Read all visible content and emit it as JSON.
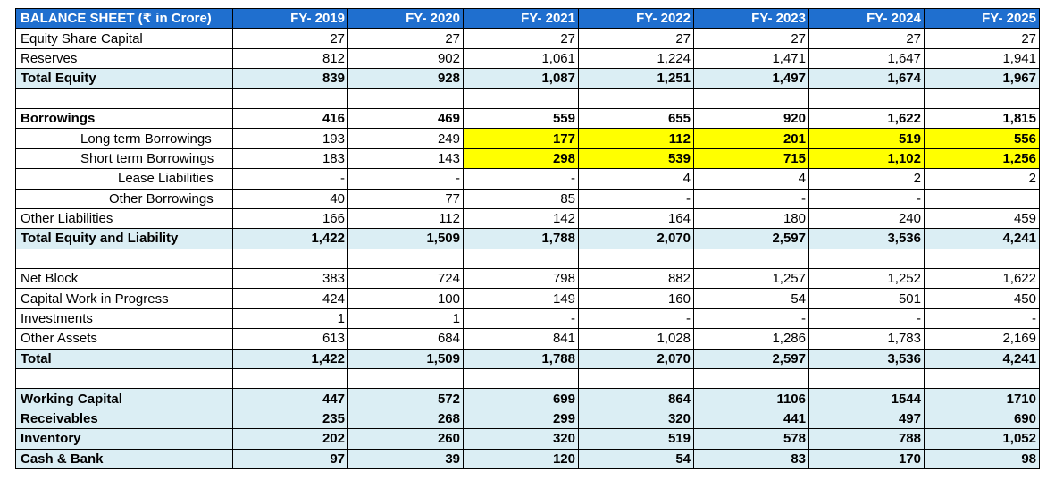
{
  "table": {
    "header": [
      "BALANCE SHEET (₹ in Crore)",
      "FY- 2019",
      "FY- 2020",
      "FY- 2021",
      "FY- 2022",
      "FY- 2023",
      "FY- 2024",
      "FY- 2025"
    ],
    "rows": [
      {
        "label": "Equity Share Capital",
        "values": [
          "27",
          "27",
          "27",
          "27",
          "27",
          "27",
          "27"
        ]
      },
      {
        "label": "Reserves",
        "values": [
          "812",
          "902",
          "1,061",
          "1,224",
          "1,471",
          "1,647",
          "1,941"
        ]
      },
      {
        "label": "Total Equity",
        "values": [
          "839",
          "928",
          "1,087",
          "1,251",
          "1,497",
          "1,674",
          "1,967"
        ]
      },
      {
        "label": "",
        "values": [
          "",
          "",
          "",
          "",
          "",
          "",
          ""
        ]
      },
      {
        "label": "Borrowings",
        "values": [
          "416",
          "469",
          "559",
          "655",
          "920",
          "1,622",
          "1,815"
        ]
      },
      {
        "label": "Long term Borrowings",
        "values": [
          "193",
          "249",
          "177",
          "112",
          "201",
          "519",
          "556"
        ]
      },
      {
        "label": "Short term Borrowings",
        "values": [
          "183",
          "143",
          "298",
          "539",
          "715",
          "1,102",
          "1,256"
        ]
      },
      {
        "label": "Lease Liabilities",
        "values": [
          "-",
          "-",
          "-",
          "4",
          "4",
          "2",
          "2"
        ]
      },
      {
        "label": "Other Borrowings",
        "values": [
          "40",
          "77",
          "85",
          "-",
          "-",
          "-",
          ""
        ]
      },
      {
        "label": "Other Liabilities",
        "values": [
          "166",
          "112",
          "142",
          "164",
          "180",
          "240",
          "459"
        ]
      },
      {
        "label": "Total Equity and Liability",
        "values": [
          "1,422",
          "1,509",
          "1,788",
          "2,070",
          "2,597",
          "3,536",
          "4,241"
        ]
      },
      {
        "label": "",
        "values": [
          "",
          "",
          "",
          "",
          "",
          "",
          ""
        ]
      },
      {
        "label": "Net Block",
        "values": [
          "383",
          "724",
          "798",
          "882",
          "1,257",
          "1,252",
          "1,622"
        ]
      },
      {
        "label": "Capital Work in Progress",
        "values": [
          "424",
          "100",
          "149",
          "160",
          "54",
          "501",
          "450"
        ]
      },
      {
        "label": "Investments",
        "values": [
          "1",
          "1",
          "-",
          "-",
          "-",
          "-",
          "-"
        ]
      },
      {
        "label": "Other Assets",
        "values": [
          "613",
          "684",
          "841",
          "1,028",
          "1,286",
          "1,783",
          "2,169"
        ]
      },
      {
        "label": "Total",
        "values": [
          "1,422",
          "1,509",
          "1,788",
          "2,070",
          "2,597",
          "3,536",
          "4,241"
        ]
      },
      {
        "label": "",
        "values": [
          "",
          "",
          "",
          "",
          "",
          "",
          ""
        ]
      },
      {
        "label": "Working Capital",
        "values": [
          "447",
          "572",
          "699",
          "864",
          "1106",
          "1544",
          "1710"
        ]
      },
      {
        "label": "Receivables",
        "values": [
          "235",
          "268",
          "299",
          "320",
          "441",
          "497",
          "690"
        ]
      },
      {
        "label": "Inventory",
        "values": [
          "202",
          "260",
          "320",
          "519",
          "578",
          "788",
          "1,052"
        ]
      },
      {
        "label": "Cash & Bank",
        "values": [
          "97",
          "39",
          "120",
          "54",
          "83",
          "170",
          "98"
        ]
      }
    ]
  },
  "colors": {
    "header_bg": "#1f6fcf",
    "total_bg": "#dbeef4",
    "highlight": "#ffff00"
  }
}
